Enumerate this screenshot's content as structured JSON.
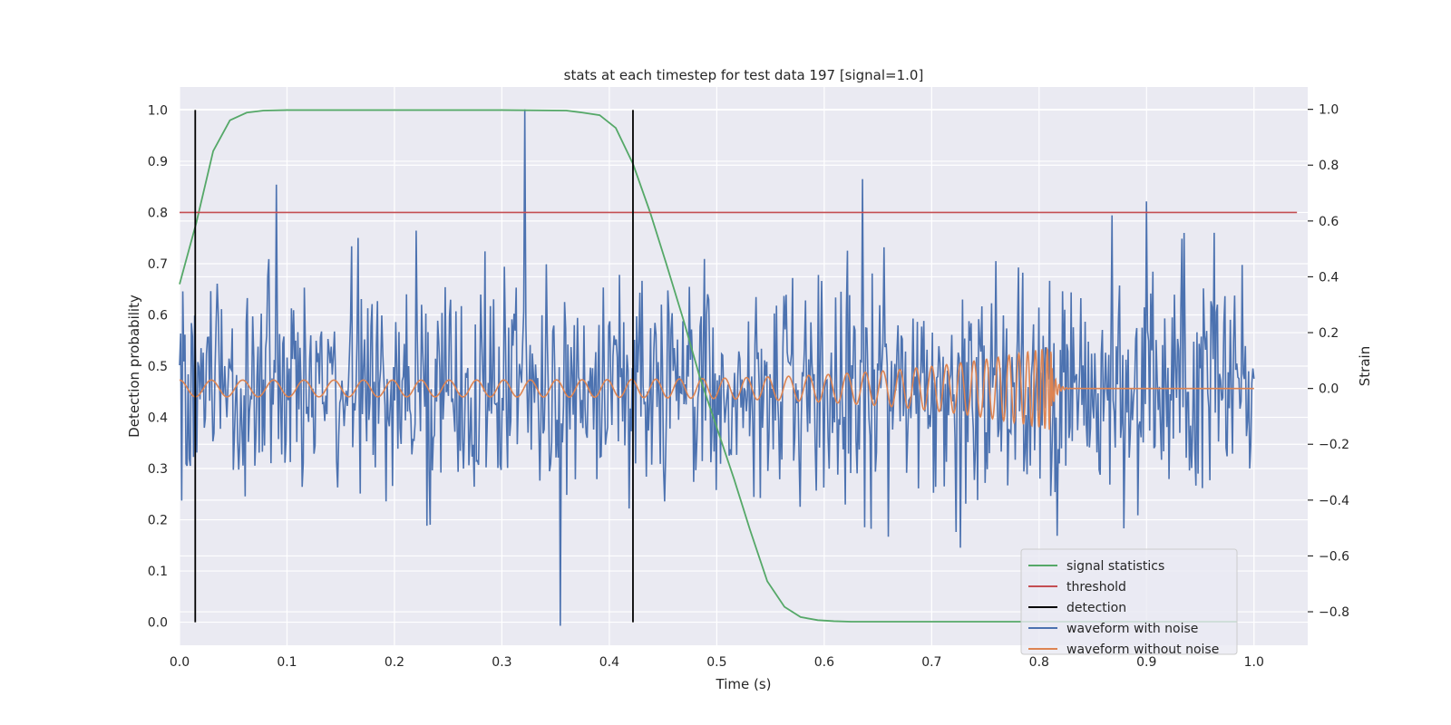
{
  "chart_data": {
    "type": "line",
    "title": "stats at each timestep for test data 197 [signal=1.0]",
    "xlabel": "Time (s)",
    "ylabel": "Detection probability",
    "y2label": "Strain",
    "xlim": [
      0.0,
      1.05
    ],
    "ylim": [
      -0.045,
      1.045
    ],
    "y2lim": [
      -0.92,
      1.08
    ],
    "xticks": [
      "0.0",
      "0.1",
      "0.2",
      "0.3",
      "0.4",
      "0.5",
      "0.6",
      "0.7",
      "0.8",
      "0.9",
      "1.0"
    ],
    "yticks": [
      "0.0",
      "0.1",
      "0.2",
      "0.3",
      "0.4",
      "0.5",
      "0.6",
      "0.7",
      "0.8",
      "0.9",
      "1.0"
    ],
    "y2ticks": [
      "−0.8",
      "−0.6",
      "−0.4",
      "−0.2",
      "0.0",
      "0.2",
      "0.4",
      "0.6",
      "0.8",
      "1.0"
    ],
    "grid": true,
    "legend_position": "lower-right",
    "colors": {
      "signal": "#55a868",
      "threshold": "#c44e52",
      "detection": "#000000",
      "noisy": "#4c72b0",
      "clean": "#dd8452",
      "plot_bg": "#eaeaf2",
      "grid": "#ffffff"
    },
    "series": [
      {
        "name": "signal statistics",
        "axis": "left",
        "x": [
          0.0,
          0.0156,
          0.0313,
          0.0469,
          0.0625,
          0.0781,
          0.1,
          0.2,
          0.3,
          0.36,
          0.375,
          0.391,
          0.406,
          0.422,
          0.438,
          0.453,
          0.469,
          0.484,
          0.5,
          0.516,
          0.531,
          0.547,
          0.563,
          0.578,
          0.594,
          0.609,
          0.625,
          0.7,
          0.8,
          0.9,
          0.984
        ],
        "y": [
          0.66,
          0.78,
          0.92,
          0.98,
          0.995,
          0.999,
          1.0,
          1.0,
          1.0,
          0.999,
          0.995,
          0.99,
          0.965,
          0.895,
          0.8,
          0.7,
          0.59,
          0.48,
          0.38,
          0.28,
          0.18,
          0.08,
          0.03,
          0.01,
          0.004,
          0.002,
          0.001,
          0.001,
          0.001,
          0.001,
          0.001
        ]
      },
      {
        "name": "threshold",
        "axis": "left",
        "x": [
          0.0,
          1.04
        ],
        "y": [
          0.8,
          0.8
        ]
      },
      {
        "name": "detection",
        "axis": "left",
        "x": [
          0.0146,
          0.422
        ],
        "y_range": [
          0.0,
          1.0
        ]
      },
      {
        "name": "waveform with noise",
        "axis": "right",
        "x_range": [
          0.0,
          1.0
        ],
        "count": 1000,
        "std": 0.2,
        "peaks": [
          [
            0.321,
            1.0
          ],
          [
            0.354,
            -0.85
          ],
          [
            0.09,
            0.73
          ],
          [
            0.636,
            0.75
          ],
          [
            0.9,
            0.67
          ]
        ]
      },
      {
        "name": "waveform without noise",
        "axis": "right",
        "x_range": [
          0.0,
          1.0
        ],
        "merger_time": 0.812,
        "amplitude_start": 0.03,
        "amplitude_peak": 0.15
      }
    ]
  }
}
